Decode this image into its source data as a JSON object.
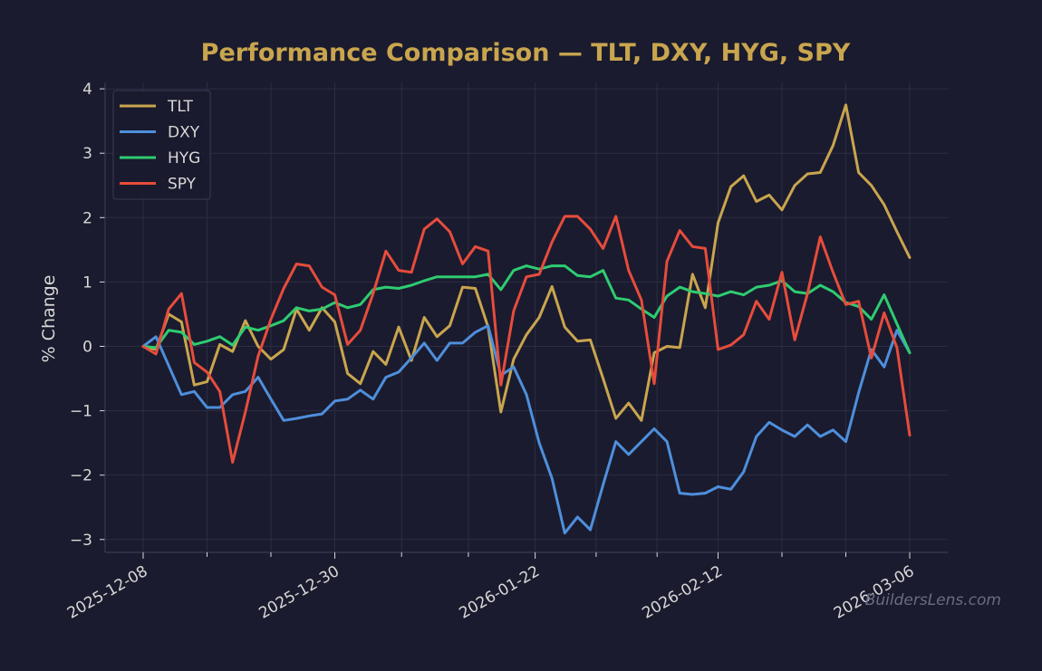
{
  "chart_data": {
    "type": "line",
    "title": "Performance Comparison — TLT, DXY, HYG, SPY",
    "xlabel": "",
    "ylabel": "% Change",
    "x_start": "2025-12-08",
    "x_end": "2026-03-06",
    "x_ticks": [
      "2025-12-08",
      "2025-12-30",
      "2026-01-22",
      "2026-02-12",
      "2026-03-06"
    ],
    "y_ticks": [
      "4",
      "3",
      "2",
      "1",
      "0",
      "−1",
      "−2",
      "−3"
    ],
    "y_tick_values": [
      4,
      3,
      2,
      1,
      0,
      -1,
      -2,
      -3
    ],
    "ylim": [
      -3.2,
      4.1
    ],
    "grid": true,
    "legend": "upper-left",
    "series": [
      {
        "name": "TLT",
        "color": "#c9a54e",
        "values": [
          0.0,
          -0.05,
          0.5,
          0.38,
          -0.6,
          -0.55,
          0.03,
          -0.08,
          0.4,
          0.0,
          -0.2,
          -0.05,
          0.58,
          0.25,
          0.6,
          0.38,
          -0.42,
          -0.58,
          -0.08,
          -0.28,
          0.3,
          -0.22,
          0.45,
          0.15,
          0.32,
          0.92,
          0.9,
          0.3,
          -1.02,
          -0.2,
          0.18,
          0.45,
          0.93,
          0.3,
          0.08,
          0.1,
          -0.5,
          -1.12,
          -0.88,
          -1.15,
          -0.1,
          0.0,
          -0.02,
          1.12,
          0.6,
          1.92,
          2.48,
          2.65,
          2.25,
          2.35,
          2.12,
          2.5,
          2.68,
          2.7,
          3.12,
          3.75,
          2.7,
          2.5,
          2.2,
          1.78,
          1.38
        ]
      },
      {
        "name": "DXY",
        "color": "#4e8fdc",
        "values": [
          0.0,
          0.15,
          -0.3,
          -0.75,
          -0.7,
          -0.95,
          -0.95,
          -0.75,
          -0.7,
          -0.48,
          -0.82,
          -1.15,
          -1.12,
          -1.08,
          -1.05,
          -0.85,
          -0.82,
          -0.68,
          -0.82,
          -0.48,
          -0.4,
          -0.18,
          0.05,
          -0.22,
          0.05,
          0.05,
          0.22,
          0.32,
          -0.45,
          -0.32,
          -0.75,
          -1.5,
          -2.05,
          -2.9,
          -2.65,
          -2.85,
          -2.15,
          -1.48,
          -1.68,
          -1.48,
          -1.28,
          -1.48,
          -2.28,
          -2.3,
          -2.28,
          -2.18,
          -2.22,
          -1.95,
          -1.4,
          -1.18,
          -1.3,
          -1.4,
          -1.22,
          -1.4,
          -1.3,
          -1.48,
          -0.72,
          -0.05,
          -0.32,
          0.25,
          -0.1
        ]
      },
      {
        "name": "HYG",
        "color": "#2ecc71",
        "values": [
          0.0,
          -0.02,
          0.25,
          0.22,
          0.03,
          0.08,
          0.15,
          0.02,
          0.3,
          0.25,
          0.32,
          0.4,
          0.6,
          0.55,
          0.58,
          0.68,
          0.6,
          0.65,
          0.88,
          0.92,
          0.9,
          0.95,
          1.02,
          1.08,
          1.08,
          1.08,
          1.08,
          1.12,
          0.88,
          1.18,
          1.25,
          1.2,
          1.25,
          1.25,
          1.1,
          1.08,
          1.18,
          0.75,
          0.72,
          0.58,
          0.45,
          0.78,
          0.92,
          0.85,
          0.82,
          0.78,
          0.85,
          0.8,
          0.92,
          0.95,
          1.02,
          0.85,
          0.82,
          0.95,
          0.85,
          0.68,
          0.62,
          0.42,
          0.8,
          0.35,
          -0.1
        ]
      },
      {
        "name": "SPY",
        "color": "#e74c3c",
        "values": [
          0.0,
          -0.12,
          0.58,
          0.82,
          -0.25,
          -0.4,
          -0.7,
          -1.8,
          -1.02,
          -0.15,
          0.42,
          0.9,
          1.28,
          1.25,
          0.92,
          0.8,
          0.03,
          0.25,
          0.82,
          1.48,
          1.18,
          1.15,
          1.82,
          1.98,
          1.78,
          1.28,
          1.55,
          1.48,
          -0.6,
          0.55,
          1.08,
          1.12,
          1.62,
          2.02,
          2.02,
          1.82,
          1.52,
          2.02,
          1.18,
          0.72,
          -0.58,
          1.32,
          1.8,
          1.55,
          1.52,
          -0.05,
          0.02,
          0.18,
          0.7,
          0.42,
          1.15,
          0.1,
          0.82,
          1.7,
          1.15,
          0.65,
          0.7,
          -0.18,
          0.52,
          -0.02,
          -1.38
        ]
      }
    ]
  },
  "watermark": "BuildersLens.com",
  "colors": {
    "background": "#1a1b2e",
    "title": "#c9a54e",
    "text": "#d8d8d8",
    "grid": "#2c2d44",
    "spine": "#3a3b55"
  }
}
